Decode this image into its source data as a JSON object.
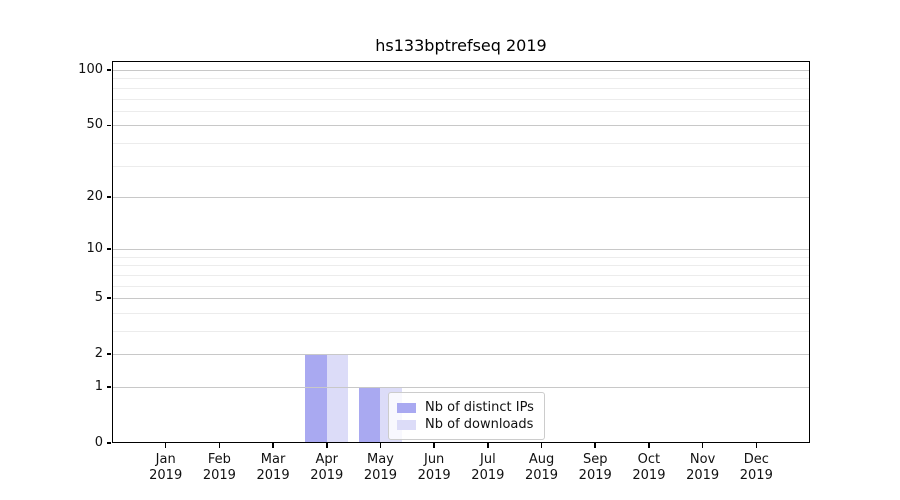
{
  "chart_data": {
    "type": "bar",
    "title": "hs133bptrefseq 2019",
    "categories": [
      {
        "month": "Jan",
        "year": "2019"
      },
      {
        "month": "Feb",
        "year": "2019"
      },
      {
        "month": "Mar",
        "year": "2019"
      },
      {
        "month": "Apr",
        "year": "2019"
      },
      {
        "month": "May",
        "year": "2019"
      },
      {
        "month": "Jun",
        "year": "2019"
      },
      {
        "month": "Jul",
        "year": "2019"
      },
      {
        "month": "Aug",
        "year": "2019"
      },
      {
        "month": "Sep",
        "year": "2019"
      },
      {
        "month": "Oct",
        "year": "2019"
      },
      {
        "month": "Nov",
        "year": "2019"
      },
      {
        "month": "Dec",
        "year": "2019"
      }
    ],
    "series": [
      {
        "name": "Nb of distinct IPs",
        "color": "#a9a9f1",
        "values": [
          0,
          0,
          0,
          2,
          1,
          0,
          0,
          0,
          0,
          0,
          0,
          0
        ]
      },
      {
        "name": "Nb of downloads",
        "color": "#dcdcf8",
        "values": [
          0,
          0,
          0,
          2,
          1,
          0,
          0,
          0,
          0,
          0,
          0,
          0
        ]
      }
    ],
    "y_axis": {
      "scale": "log1p",
      "ticks": [
        0,
        1,
        2,
        5,
        10,
        20,
        50,
        100
      ],
      "tick_labels": [
        "0",
        "1",
        "2",
        "5",
        "10",
        "20",
        "50",
        "100"
      ],
      "minor_gridlines": [
        3,
        4,
        6,
        7,
        8,
        9,
        30,
        40,
        60,
        70,
        80,
        90
      ],
      "ylim": [
        0,
        112
      ]
    },
    "xlabel": "",
    "ylabel": "",
    "grid": "horizontal",
    "legend_position": "lower center"
  },
  "colors": {
    "background": "#ffffff",
    "spine": "#000000",
    "grid_major": "#c8c8c8",
    "grid_minor": "#ececec",
    "text": "#111111",
    "legend_border": "#cccccc"
  }
}
